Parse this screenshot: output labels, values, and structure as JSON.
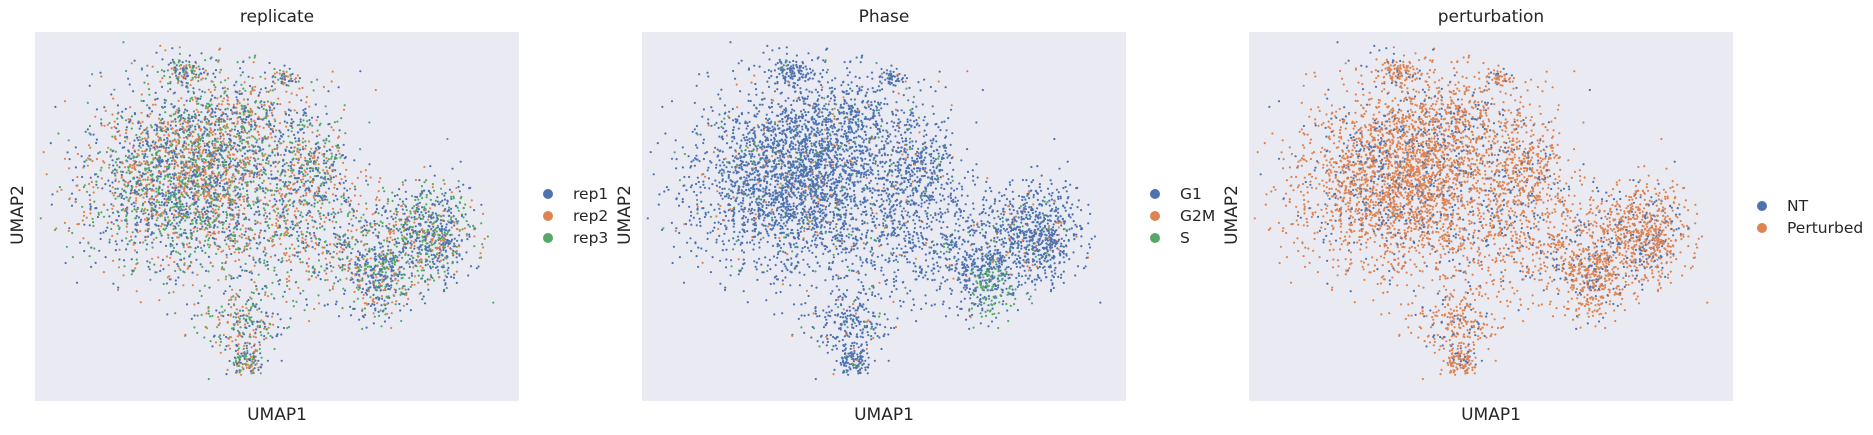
{
  "chart_data": [
    {
      "type": "scatter",
      "title": "replicate",
      "xlabel": "UMAP1",
      "ylabel": "UMAP2",
      "grid": false,
      "legend_placement": "right",
      "series": [
        {
          "name": "rep1",
          "color": "#4c72b0"
        },
        {
          "name": "rep2",
          "color": "#dd8452"
        },
        {
          "name": "rep3",
          "color": "#55a868"
        }
      ]
    },
    {
      "type": "scatter",
      "title": "Phase",
      "xlabel": "UMAP1",
      "ylabel": "UMAP2",
      "grid": false,
      "legend_placement": "right",
      "series": [
        {
          "name": "G1",
          "color": "#4c72b0"
        },
        {
          "name": "G2M",
          "color": "#dd8452"
        },
        {
          "name": "S",
          "color": "#55a868"
        }
      ]
    },
    {
      "type": "scatter",
      "title": "perturbation",
      "xlabel": "UMAP1",
      "ylabel": "UMAP2",
      "grid": false,
      "legend_placement": "right",
      "series": [
        {
          "name": "NT",
          "color": "#4c72b0"
        },
        {
          "name": "Perturbed",
          "color": "#dd8452"
        }
      ]
    }
  ]
}
